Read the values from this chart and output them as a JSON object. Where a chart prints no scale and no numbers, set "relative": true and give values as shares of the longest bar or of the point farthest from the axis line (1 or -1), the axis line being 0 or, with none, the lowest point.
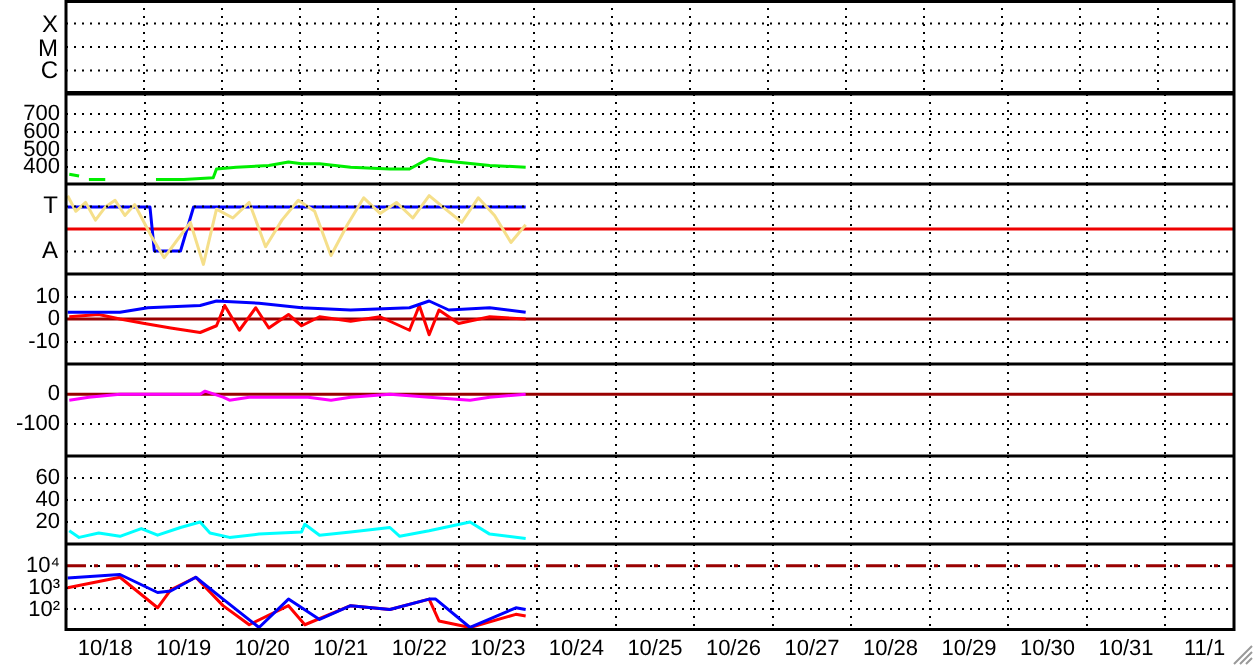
{
  "chart_data": [
    {
      "type": "other",
      "annotations": [
        "X",
        "M",
        "C"
      ]
    },
    {
      "type": "line",
      "marker": "none",
      "grid": true,
      "tick_labels": "y",
      "xlim": [
        "--10-18T00:00",
        "--11-01T21:00"
      ],
      "ylim": [
        305,
        815
      ],
      "yticks": [
        400,
        500,
        600,
        700
      ],
      "xticks": [
        {
          "value": "--10-19T00:00",
          "label": null
        },
        {
          "value": "--10-20T00:00",
          "label": null
        },
        {
          "value": "--10-21T00:00",
          "label": null
        },
        {
          "value": "--10-22T00:00",
          "label": null
        },
        {
          "value": "--10-23T00:00",
          "label": null
        },
        {
          "value": "--10-24T00:00",
          "label": null
        },
        {
          "value": "--10-25T00:00",
          "label": null
        },
        {
          "value": "--10-26T00:00",
          "label": null
        },
        {
          "value": "--10-27T00:00",
          "label": null
        },
        {
          "value": "--10-28T00:00",
          "label": null
        },
        {
          "value": "--10-29T00:00",
          "label": null
        },
        {
          "value": "--10-30T00:00",
          "label": null
        },
        {
          "value": "--10-31T00:00",
          "label": null
        },
        {
          "value": "--11-01T00:00",
          "label": null
        }
      ],
      "series": [
        {
          "color": "#00ee00",
          "x": [
            "--10-18T01:00",
            "--10-18T04:00",
            "--10-18T05:30",
            "--10-18T07:00",
            "--10-18T12:00",
            "--10-18T20:00",
            "--10-19T03:30",
            "--10-19T12:00",
            "--10-19T21:00",
            "--10-19T22:00",
            "--10-20T04:00",
            "--10-20T14:00",
            "--10-20T20:00",
            "--10-21T00:00",
            "--10-21T05:30",
            "--10-21T15:00",
            "--10-22T03:00",
            "--10-22T09:00",
            "--10-22T15:00",
            "--10-22T18:00",
            "--10-23T09:30",
            "--10-23T20:30"
          ],
          "values": [
            360,
            350,
            null,
            330,
            330,
            null,
            330,
            330,
            340,
            390,
            400,
            410,
            430,
            420,
            420,
            400,
            390,
            390,
            450,
            440,
            410,
            400
          ]
        }
      ]
    },
    {
      "type": "line",
      "marker": "none",
      "grid": true,
      "tick_labels": "y",
      "xlim": [
        "--10-18T00:00",
        "--11-01T21:00"
      ],
      "relative": true,
      "annotations": [
        "T",
        "A"
      ],
      "xticks": [
        {
          "value": "--10-19T00:00",
          "label": null
        },
        {
          "value": "--10-20T00:00",
          "label": null
        },
        {
          "value": "--10-21T00:00",
          "label": null
        },
        {
          "value": "--10-22T00:00",
          "label": null
        },
        {
          "value": "--10-23T00:00",
          "label": null
        },
        {
          "value": "--10-24T00:00",
          "label": null
        },
        {
          "value": "--10-25T00:00",
          "label": null
        },
        {
          "value": "--10-26T00:00",
          "label": null
        },
        {
          "value": "--10-27T00:00",
          "label": null
        },
        {
          "value": "--10-28T00:00",
          "label": null
        },
        {
          "value": "--10-29T00:00",
          "label": null
        },
        {
          "value": "--10-30T00:00",
          "label": null
        },
        {
          "value": "--10-31T00:00",
          "label": null
        },
        {
          "value": "--11-01T00:00",
          "label": null
        }
      ],
      "ref_lines": [
        {
          "axis": "y",
          "value": 0,
          "color": "#ee0000",
          "line_style": "solid"
        }
      ],
      "series": [
        {
          "color": "#f5df8a",
          "x": [
            "--10-18T00:30",
            "--10-18T03:00",
            "--10-18T06:00",
            "--10-18T09:00",
            "--10-18T12:00",
            "--10-18T15:00",
            "--10-18T18:00",
            "--10-18T21:00",
            "--10-19T02:00",
            "--10-19T06:00",
            "--10-19T10:00",
            "--10-19T14:00",
            "--10-19T18:00",
            "--10-19T22:00",
            "--10-20T03:00",
            "--10-20T08:00",
            "--10-20T13:00",
            "--10-20T18:00",
            "--10-20T23:00",
            "--10-21T04:00",
            "--10-21T09:00",
            "--10-21T14:00",
            "--10-21T19:00",
            "--10-22T00:00",
            "--10-22T05:00",
            "--10-22T10:00",
            "--10-22T15:00",
            "--10-22T20:00",
            "--10-23T01:00",
            "--10-23T06:00",
            "--10-23T11:00",
            "--10-23T16:00",
            "--10-23T20:30"
          ],
          "values": [
            0.94,
            0.5,
            0.75,
            0.25,
            0.62,
            0.81,
            0.38,
            0.69,
            -0.19,
            -0.81,
            -0.31,
            0.19,
            -1,
            0.56,
            0.31,
            0.75,
            -0.5,
            0.25,
            0.81,
            0.5,
            -0.75,
            0.12,
            0.88,
            0.44,
            0.75,
            0.31,
            0.94,
            0.56,
            0.19,
            0.88,
            0.38,
            -0.38,
            0.12
          ]
        },
        {
          "color": "#0000ff",
          "x": [
            "--10-18T00:30",
            "--10-19T01:40",
            "--10-19T03:00",
            "--10-19T11:00",
            "--10-19T15:00",
            "--10-23T20:30"
          ],
          "values": [
            0.62,
            0.62,
            -0.62,
            -0.62,
            0.62,
            0.62
          ]
        }
      ]
    },
    {
      "type": "line",
      "marker": "none",
      "grid": true,
      "tick_labels": "y",
      "xlim": [
        "--10-18T00:00",
        "--11-01T21:00"
      ],
      "ylim": [
        -20,
        20
      ],
      "yticks": [
        -10,
        0,
        10
      ],
      "xticks": [
        {
          "value": "--10-19T00:00",
          "label": null
        },
        {
          "value": "--10-20T00:00",
          "label": null
        },
        {
          "value": "--10-21T00:00",
          "label": null
        },
        {
          "value": "--10-22T00:00",
          "label": null
        },
        {
          "value": "--10-23T00:00",
          "label": null
        },
        {
          "value": "--10-24T00:00",
          "label": null
        },
        {
          "value": "--10-25T00:00",
          "label": null
        },
        {
          "value": "--10-26T00:00",
          "label": null
        },
        {
          "value": "--10-27T00:00",
          "label": null
        },
        {
          "value": "--10-28T00:00",
          "label": null
        },
        {
          "value": "--10-29T00:00",
          "label": null
        },
        {
          "value": "--10-30T00:00",
          "label": null
        },
        {
          "value": "--10-31T00:00",
          "label": null
        },
        {
          "value": "--11-01T00:00",
          "label": null
        }
      ],
      "ref_lines": [
        {
          "axis": "y",
          "value": 0,
          "color": "#990000",
          "line_style": "solid"
        }
      ],
      "series": [
        {
          "color": "#0000ff",
          "x": [
            "--10-18T00:30",
            "--10-18T16:30",
            "--10-19T01:00",
            "--10-19T17:00",
            "--10-19T22:00",
            "--10-20T11:00",
            "--10-21T00:00",
            "--10-21T15:00",
            "--10-22T09:00",
            "--10-22T15:00",
            "--10-22T21:00",
            "--10-23T09:30",
            "--10-23T20:30"
          ],
          "values": [
            3,
            3,
            5,
            6,
            8,
            7,
            5,
            4,
            5,
            8,
            4,
            5,
            3
          ]
        },
        {
          "color": "#ff0000",
          "x": [
            "--10-18T01:00",
            "--10-18T10:00",
            "--10-18T16:30",
            "--10-19T00:00",
            "--10-19T08:00",
            "--10-19T17:00",
            "--10-19T22:00",
            "--10-20T00:30",
            "--10-20T05:00",
            "--10-20T10:00",
            "--10-20T14:00",
            "--10-20T20:00",
            "--10-21T00:00",
            "--10-21T05:30",
            "--10-21T15:00",
            "--10-22T00:00",
            "--10-22T09:00",
            "--10-22T12:00",
            "--10-22T15:00",
            "--10-22T18:00",
            "--10-23T00:00",
            "--10-23T09:30",
            "--10-23T20:30"
          ],
          "values": [
            1,
            2,
            0,
            -2,
            -4,
            -6,
            -3,
            6,
            -5,
            5,
            -4,
            2,
            -3,
            1,
            -1,
            1,
            -5,
            6,
            -7,
            4,
            -2,
            1,
            0
          ]
        }
      ]
    },
    {
      "type": "line",
      "marker": "none",
      "grid": true,
      "tick_labels": "y",
      "xlim": [
        "--10-18T00:00",
        "--11-01T21:00"
      ],
      "ylim": [
        -205,
        100
      ],
      "yticks": [
        -100,
        0
      ],
      "xticks": [
        {
          "value": "--10-19T00:00",
          "label": null
        },
        {
          "value": "--10-20T00:00",
          "label": null
        },
        {
          "value": "--10-21T00:00",
          "label": null
        },
        {
          "value": "--10-22T00:00",
          "label": null
        },
        {
          "value": "--10-23T00:00",
          "label": null
        },
        {
          "value": "--10-24T00:00",
          "label": null
        },
        {
          "value": "--10-25T00:00",
          "label": null
        },
        {
          "value": "--10-26T00:00",
          "label": null
        },
        {
          "value": "--10-27T00:00",
          "label": null
        },
        {
          "value": "--10-28T00:00",
          "label": null
        },
        {
          "value": "--10-29T00:00",
          "label": null
        },
        {
          "value": "--10-30T00:00",
          "label": null
        },
        {
          "value": "--10-31T00:00",
          "label": null
        },
        {
          "value": "--11-01T00:00",
          "label": null
        }
      ],
      "ref_lines": [
        {
          "axis": "y",
          "value": 0,
          "color": "#990000",
          "line_style": "solid"
        }
      ],
      "series": [
        {
          "color": "#ff00ff",
          "x": [
            "--10-18T01:00",
            "--10-18T07:00",
            "--10-18T16:30",
            "--10-19T17:00",
            "--10-19T18:30",
            "--10-20T00:00",
            "--10-20T02:00",
            "--10-20T08:00",
            "--10-20T20:00",
            "--10-21T02:00",
            "--10-21T09:00",
            "--10-21T15:00",
            "--10-22T03:00",
            "--10-22T15:00",
            "--10-23T03:30",
            "--10-23T09:30",
            "--10-23T20:30"
          ],
          "values": [
            -20,
            -10,
            0,
            0,
            10,
            -10,
            -20,
            -10,
            -10,
            -10,
            -20,
            -10,
            0,
            -10,
            -20,
            -10,
            0
          ]
        }
      ]
    },
    {
      "type": "line",
      "marker": "none",
      "grid": true,
      "tick_labels": "y",
      "xlim": [
        "--10-18T00:00",
        "--11-01T21:00"
      ],
      "ylim": [
        0,
        80
      ],
      "yticks": [
        20,
        40,
        60
      ],
      "xticks": [
        {
          "value": "--10-19T00:00",
          "label": null
        },
        {
          "value": "--10-20T00:00",
          "label": null
        },
        {
          "value": "--10-21T00:00",
          "label": null
        },
        {
          "value": "--10-22T00:00",
          "label": null
        },
        {
          "value": "--10-23T00:00",
          "label": null
        },
        {
          "value": "--10-24T00:00",
          "label": null
        },
        {
          "value": "--10-25T00:00",
          "label": null
        },
        {
          "value": "--10-26T00:00",
          "label": null
        },
        {
          "value": "--10-27T00:00",
          "label": null
        },
        {
          "value": "--10-28T00:00",
          "label": null
        },
        {
          "value": "--10-29T00:00",
          "label": null
        },
        {
          "value": "--10-30T00:00",
          "label": null
        },
        {
          "value": "--10-31T00:00",
          "label": null
        },
        {
          "value": "--11-01T00:00",
          "label": null
        }
      ],
      "series": [
        {
          "color": "#00ffff",
          "x": [
            "--10-18T01:00",
            "--10-18T04:00",
            "--10-18T10:00",
            "--10-18T16:30",
            "--10-18T23:00",
            "--10-19T04:00",
            "--10-19T11:00",
            "--10-19T17:00",
            "--10-19T20:00",
            "--10-20T02:00",
            "--10-20T11:00",
            "--10-21T00:00",
            "--10-21T01:00",
            "--10-21T05:30",
            "--10-21T15:00",
            "--10-22T03:00",
            "--10-22T06:00",
            "--10-22T15:00",
            "--10-23T03:30",
            "--10-23T09:30",
            "--10-23T20:30"
          ],
          "values": [
            12,
            6,
            10,
            7,
            14,
            8,
            15,
            20,
            10,
            6,
            9,
            11,
            18,
            8,
            11,
            15,
            7,
            12,
            20,
            9,
            5
          ]
        }
      ]
    },
    {
      "type": "line",
      "marker": "none",
      "grid": true,
      "log": "y",
      "xlim": [
        "--10-18T00:00",
        "--11-01T21:00"
      ],
      "ylim": [
        12,
        100000
      ],
      "yticks": [
        {
          "value": 100,
          "label": "10²"
        },
        {
          "value": 1000,
          "label": "10³"
        },
        {
          "value": 10000,
          "label": "10⁴"
        }
      ],
      "xticks": [
        {
          "value": "--10-18T12:00",
          "label": "10/18"
        },
        {
          "value": "--10-19T00:00",
          "label": null
        },
        {
          "value": "--10-19T12:00",
          "label": "10/19"
        },
        {
          "value": "--10-20T00:00",
          "label": null
        },
        {
          "value": "--10-20T12:00",
          "label": "10/20"
        },
        {
          "value": "--10-21T00:00",
          "label": null
        },
        {
          "value": "--10-21T12:00",
          "label": "10/21"
        },
        {
          "value": "--10-22T00:00",
          "label": null
        },
        {
          "value": "--10-22T12:00",
          "label": "10/22"
        },
        {
          "value": "--10-23T00:00",
          "label": null
        },
        {
          "value": "--10-23T12:00",
          "label": "10/23"
        },
        {
          "value": "--10-24T00:00",
          "label": null
        },
        {
          "value": "--10-24T12:00",
          "label": "10/24"
        },
        {
          "value": "--10-25T00:00",
          "label": null
        },
        {
          "value": "--10-25T12:00",
          "label": "10/25"
        },
        {
          "value": "--10-26T00:00",
          "label": null
        },
        {
          "value": "--10-26T12:00",
          "label": "10/26"
        },
        {
          "value": "--10-27T00:00",
          "label": null
        },
        {
          "value": "--10-27T12:00",
          "label": "10/27"
        },
        {
          "value": "--10-28T00:00",
          "label": null
        },
        {
          "value": "--10-28T12:00",
          "label": "10/28"
        },
        {
          "value": "--10-29T00:00",
          "label": null
        },
        {
          "value": "--10-29T12:00",
          "label": "10/29"
        },
        {
          "value": "--10-30T00:00",
          "label": null
        },
        {
          "value": "--10-30T12:00",
          "label": "10/30"
        },
        {
          "value": "--10-31T00:00",
          "label": null
        },
        {
          "value": "--10-31T12:00",
          "label": "10/31"
        },
        {
          "value": "--11-01T00:00",
          "label": null
        },
        {
          "value": "--11-01T12:00",
          "label": "11/1"
        }
      ],
      "ref_lines": [
        {
          "axis": "y",
          "value": 10000,
          "color": "#990000",
          "line_style": "dashed"
        }
      ],
      "series": [
        {
          "color": "#0000ff",
          "x": [
            "--10-18T00:30",
            "--10-18T16:30",
            "--10-19T04:00",
            "--10-19T08:00",
            "--10-19T15:40",
            "--10-20T00:00",
            "--10-20T11:00",
            "--10-20T20:00",
            "--10-21T05:30",
            "--10-21T15:00",
            "--10-22T03:00",
            "--10-22T15:00",
            "--10-22T17:00",
            "--10-23T03:30",
            "--10-23T17:30",
            "--10-23T20:30"
          ],
          "values": [
            2800,
            4000,
            600,
            700,
            3000,
            300,
            15,
            300,
            35,
            150,
            100,
            300,
            300,
            15,
            120,
            100
          ]
        },
        {
          "color": "#ff0000",
          "x": [
            "--10-18T00:30",
            "--10-18T16:30",
            "--10-19T04:00",
            "--10-19T08:00",
            "--10-19T15:40",
            "--10-20T00:00",
            "--10-20T08:00",
            "--10-20T20:00",
            "--10-21T01:00",
            "--10-21T15:00",
            "--10-22T03:00",
            "--10-22T15:00",
            "--10-22T18:00",
            "--10-23T03:30",
            "--10-23T17:30",
            "--10-23T20:30"
          ],
          "values": [
            1000,
            3000,
            120,
            800,
            3000,
            150,
            20,
            150,
            20,
            150,
            100,
            300,
            30,
            15,
            60,
            50
          ]
        }
      ]
    }
  ]
}
